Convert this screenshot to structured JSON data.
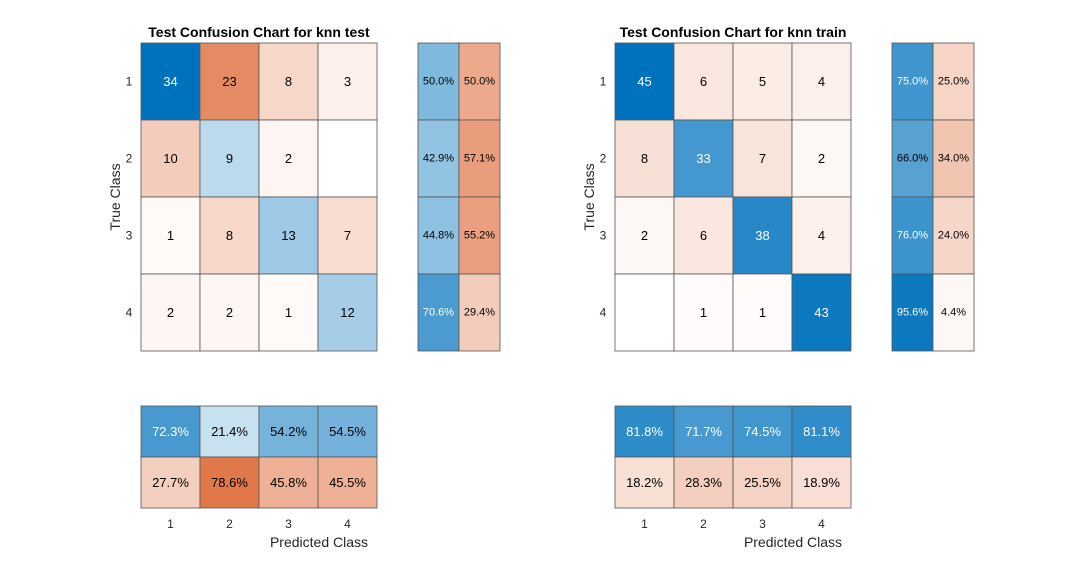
{
  "chart_data": [
    {
      "type": "heatmap",
      "title": "Test Confusion Chart for knn test",
      "xlabel": "Predicted Class",
      "ylabel": "True Class",
      "classes": [
        "1",
        "2",
        "3",
        "4"
      ],
      "matrix": [
        [
          34,
          23,
          8,
          3
        ],
        [
          10,
          9,
          2,
          null
        ],
        [
          1,
          8,
          13,
          7
        ],
        [
          2,
          2,
          1,
          12
        ]
      ],
      "row_summary": [
        [
          "50.0%",
          "50.0%"
        ],
        [
          "42.9%",
          "57.1%"
        ],
        [
          "44.8%",
          "55.2%"
        ],
        [
          "70.6%",
          "29.4%"
        ]
      ],
      "row_summary_values": [
        [
          0.5,
          0.5
        ],
        [
          0.429,
          0.571
        ],
        [
          0.448,
          0.552
        ],
        [
          0.706,
          0.294
        ]
      ],
      "col_summary": [
        [
          "72.3%",
          "21.4%",
          "54.2%",
          "54.5%"
        ],
        [
          "27.7%",
          "78.6%",
          "45.8%",
          "45.5%"
        ]
      ],
      "col_summary_values": [
        [
          0.723,
          0.214,
          0.542,
          0.545
        ],
        [
          0.277,
          0.786,
          0.458,
          0.455
        ]
      ]
    },
    {
      "type": "heatmap",
      "title": "Test Confusion Chart for knn train",
      "xlabel": "Predicted Class",
      "ylabel": "True Class",
      "classes": [
        "1",
        "2",
        "3",
        "4"
      ],
      "matrix": [
        [
          45,
          6,
          5,
          4
        ],
        [
          8,
          33,
          7,
          2
        ],
        [
          2,
          6,
          38,
          4
        ],
        [
          null,
          1,
          1,
          43
        ]
      ],
      "row_summary": [
        [
          "75.0%",
          "25.0%"
        ],
        [
          "66.0%",
          "34.0%"
        ],
        [
          "76.0%",
          "24.0%"
        ],
        [
          "95.6%",
          "4.4%"
        ]
      ],
      "row_summary_values": [
        [
          0.75,
          0.25
        ],
        [
          0.66,
          0.34
        ],
        [
          0.76,
          0.24
        ],
        [
          0.956,
          0.044
        ]
      ],
      "col_summary": [
        [
          "81.8%",
          "71.7%",
          "74.5%",
          "81.1%"
        ],
        [
          "18.2%",
          "28.3%",
          "25.5%",
          "18.9%"
        ]
      ],
      "col_summary_values": [
        [
          0.818,
          0.717,
          0.745,
          0.811
        ],
        [
          0.182,
          0.283,
          0.255,
          0.189
        ]
      ]
    }
  ],
  "colors": {
    "correct": "#0072BD",
    "incorrect": "#D95319",
    "background": "#ffffff",
    "grid": "#555555",
    "text": "#000000",
    "axis_text": "#262626"
  }
}
